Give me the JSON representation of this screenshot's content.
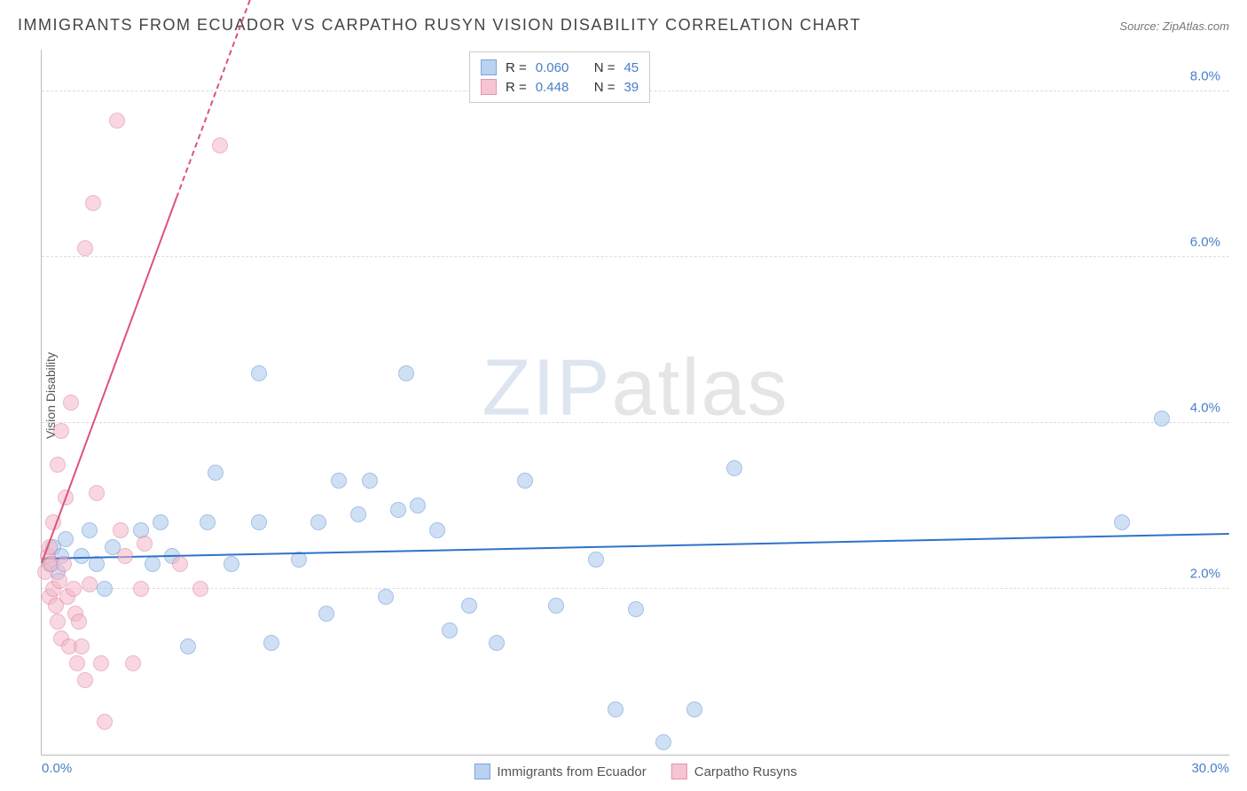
{
  "title": "IMMIGRANTS FROM ECUADOR VS CARPATHO RUSYN VISION DISABILITY CORRELATION CHART",
  "source_label": "Source:",
  "source_name": "ZipAtlas.com",
  "ylabel": "Vision Disability",
  "watermark_a": "ZIP",
  "watermark_b": "atlas",
  "chart": {
    "type": "scatter",
    "xlim": [
      0,
      30
    ],
    "ylim": [
      0,
      8.5
    ],
    "x_ticks": [
      {
        "pos": 0.0,
        "label": "0.0%",
        "align": "left"
      },
      {
        "pos": 30.0,
        "label": "30.0%",
        "align": "right"
      }
    ],
    "y_ticks": [
      {
        "pos": 2.0,
        "label": "2.0%"
      },
      {
        "pos": 4.0,
        "label": "4.0%"
      },
      {
        "pos": 6.0,
        "label": "6.0%"
      },
      {
        "pos": 8.0,
        "label": "8.0%"
      }
    ],
    "gridlines_y": [
      2.0,
      4.0,
      6.0,
      8.0
    ],
    "marker_radius": 9,
    "marker_border_width": 1.5,
    "series": [
      {
        "name": "Immigrants from Ecuador",
        "fill": "#a8c8ed",
        "stroke": "#5a8fd0",
        "fill_opacity": 0.55,
        "R": "0.060",
        "N": "45",
        "trend": {
          "x1": 0,
          "y1": 2.35,
          "x2": 30,
          "y2": 2.65,
          "color": "#2f72c9",
          "width": 2
        },
        "points": [
          [
            0.2,
            2.3
          ],
          [
            0.3,
            2.5
          ],
          [
            0.4,
            2.2
          ],
          [
            0.5,
            2.4
          ],
          [
            0.6,
            2.6
          ],
          [
            1.0,
            2.4
          ],
          [
            1.2,
            2.7
          ],
          [
            1.4,
            2.3
          ],
          [
            1.6,
            2.0
          ],
          [
            1.8,
            2.5
          ],
          [
            2.5,
            2.7
          ],
          [
            2.8,
            2.3
          ],
          [
            3.0,
            2.8
          ],
          [
            3.3,
            2.4
          ],
          [
            3.7,
            1.3
          ],
          [
            4.2,
            2.8
          ],
          [
            4.4,
            3.4
          ],
          [
            4.8,
            2.3
          ],
          [
            5.5,
            2.8
          ],
          [
            5.8,
            1.35
          ],
          [
            5.5,
            4.6
          ],
          [
            6.5,
            2.35
          ],
          [
            7.0,
            2.8
          ],
          [
            7.2,
            1.7
          ],
          [
            7.5,
            3.3
          ],
          [
            8.0,
            2.9
          ],
          [
            8.3,
            3.3
          ],
          [
            8.7,
            1.9
          ],
          [
            9.0,
            2.95
          ],
          [
            9.2,
            4.6
          ],
          [
            9.5,
            3.0
          ],
          [
            10.0,
            2.7
          ],
          [
            10.3,
            1.5
          ],
          [
            10.8,
            1.8
          ],
          [
            11.5,
            1.35
          ],
          [
            12.2,
            3.3
          ],
          [
            13.0,
            1.8
          ],
          [
            14.0,
            2.35
          ],
          [
            14.5,
            0.55
          ],
          [
            15.0,
            1.75
          ],
          [
            15.7,
            0.15
          ],
          [
            16.5,
            0.55
          ],
          [
            17.5,
            3.45
          ],
          [
            27.3,
            2.8
          ],
          [
            28.3,
            4.05
          ]
        ]
      },
      {
        "name": "Carpatho Rusyns",
        "fill": "#f3b8c8",
        "stroke": "#e07a9a",
        "fill_opacity": 0.55,
        "R": "0.448",
        "N": "39",
        "trend": {
          "x1": 0,
          "y1": 2.3,
          "x2": 3.4,
          "y2": 6.7,
          "color": "#e0517a",
          "width": 2,
          "dash_extend": {
            "x2": 6.2,
            "y2": 10.3
          }
        },
        "points": [
          [
            0.1,
            2.2
          ],
          [
            0.15,
            2.4
          ],
          [
            0.2,
            1.9
          ],
          [
            0.2,
            2.5
          ],
          [
            0.25,
            2.3
          ],
          [
            0.3,
            2.0
          ],
          [
            0.3,
            2.8
          ],
          [
            0.35,
            1.8
          ],
          [
            0.4,
            3.5
          ],
          [
            0.4,
            1.6
          ],
          [
            0.45,
            2.1
          ],
          [
            0.5,
            3.9
          ],
          [
            0.5,
            1.4
          ],
          [
            0.55,
            2.3
          ],
          [
            0.6,
            3.1
          ],
          [
            0.65,
            1.9
          ],
          [
            0.7,
            1.3
          ],
          [
            0.75,
            4.25
          ],
          [
            0.8,
            2.0
          ],
          [
            0.85,
            1.7
          ],
          [
            0.9,
            1.1
          ],
          [
            0.95,
            1.6
          ],
          [
            1.0,
            1.3
          ],
          [
            1.1,
            6.1
          ],
          [
            1.1,
            0.9
          ],
          [
            1.2,
            2.05
          ],
          [
            1.3,
            6.65
          ],
          [
            1.4,
            3.15
          ],
          [
            1.5,
            1.1
          ],
          [
            1.6,
            0.4
          ],
          [
            1.9,
            7.65
          ],
          [
            2.0,
            2.7
          ],
          [
            2.1,
            2.4
          ],
          [
            2.3,
            1.1
          ],
          [
            2.5,
            2.0
          ],
          [
            2.6,
            2.55
          ],
          [
            3.5,
            2.3
          ],
          [
            4.0,
            2.0
          ],
          [
            4.5,
            7.35
          ]
        ]
      }
    ]
  },
  "legend_top": {
    "R_label": "R =",
    "N_label": "N ="
  },
  "colors": {
    "title": "#444444",
    "axis_text": "#4a7ec9",
    "grid": "#dddddd",
    "border": "#bbbbbb"
  }
}
